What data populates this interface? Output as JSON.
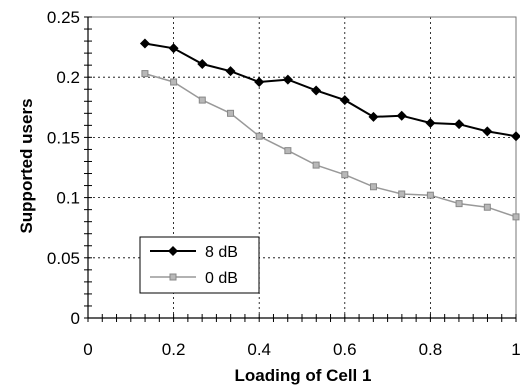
{
  "chart_data": {
    "type": "line",
    "xlabel": "Loading of Cell 1",
    "ylabel": "Supported users",
    "xlim": [
      0,
      1
    ],
    "ylim": [
      0,
      0.25
    ],
    "x_ticks": [
      "0",
      "0.2",
      "0.4",
      "0.6",
      "0.8",
      "1"
    ],
    "y_ticks": [
      "0",
      "0.05",
      "0.1",
      "0.15",
      "0.2",
      "0.25"
    ],
    "grid": true,
    "legend_position": "bottom-left",
    "series": [
      {
        "name": "8 dB",
        "color": "#000000",
        "marker": "diamond",
        "x": [
          0.133,
          0.2,
          0.267,
          0.333,
          0.4,
          0.467,
          0.533,
          0.6,
          0.667,
          0.733,
          0.8,
          0.867,
          0.933,
          1.0
        ],
        "y": [
          0.228,
          0.224,
          0.211,
          0.205,
          0.196,
          0.198,
          0.189,
          0.181,
          0.167,
          0.168,
          0.162,
          0.161,
          0.155,
          0.151
        ]
      },
      {
        "name": "0 dB",
        "color": "#999999",
        "marker": "square",
        "x": [
          0.133,
          0.2,
          0.267,
          0.333,
          0.4,
          0.467,
          0.533,
          0.6,
          0.667,
          0.733,
          0.8,
          0.867,
          0.933,
          1.0
        ],
        "y": [
          0.203,
          0.196,
          0.181,
          0.17,
          0.151,
          0.139,
          0.127,
          0.119,
          0.109,
          0.103,
          0.102,
          0.095,
          0.092,
          0.084
        ]
      }
    ]
  }
}
